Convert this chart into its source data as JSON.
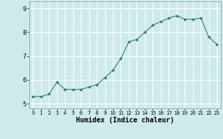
{
  "x": [
    0,
    1,
    2,
    3,
    4,
    5,
    6,
    7,
    8,
    9,
    10,
    11,
    12,
    13,
    14,
    15,
    16,
    17,
    18,
    19,
    20,
    21,
    22,
    23
  ],
  "y": [
    5.3,
    5.3,
    5.4,
    5.9,
    5.6,
    5.6,
    5.6,
    5.7,
    5.8,
    6.1,
    6.4,
    6.9,
    7.6,
    7.7,
    8.0,
    8.3,
    8.45,
    8.6,
    8.7,
    8.55,
    8.55,
    8.6,
    7.8,
    7.5
  ],
  "line_color": "#2d7d6e",
  "marker": "D",
  "marker_size": 2.0,
  "bg_color": "#ceeaeb",
  "grid_color": "#ffffff",
  "xlabel": "Humidex (Indice chaleur)",
  "xlabel_fontsize": 7,
  "tick_fontsize": 6,
  "ylim": [
    4.8,
    9.3
  ],
  "xlim": [
    -0.5,
    23.5
  ],
  "yticks": [
    5,
    6,
    7,
    8,
    9
  ],
  "xticks": [
    0,
    1,
    2,
    3,
    4,
    5,
    6,
    7,
    8,
    9,
    10,
    11,
    12,
    13,
    14,
    15,
    16,
    17,
    18,
    19,
    20,
    21,
    22,
    23
  ]
}
